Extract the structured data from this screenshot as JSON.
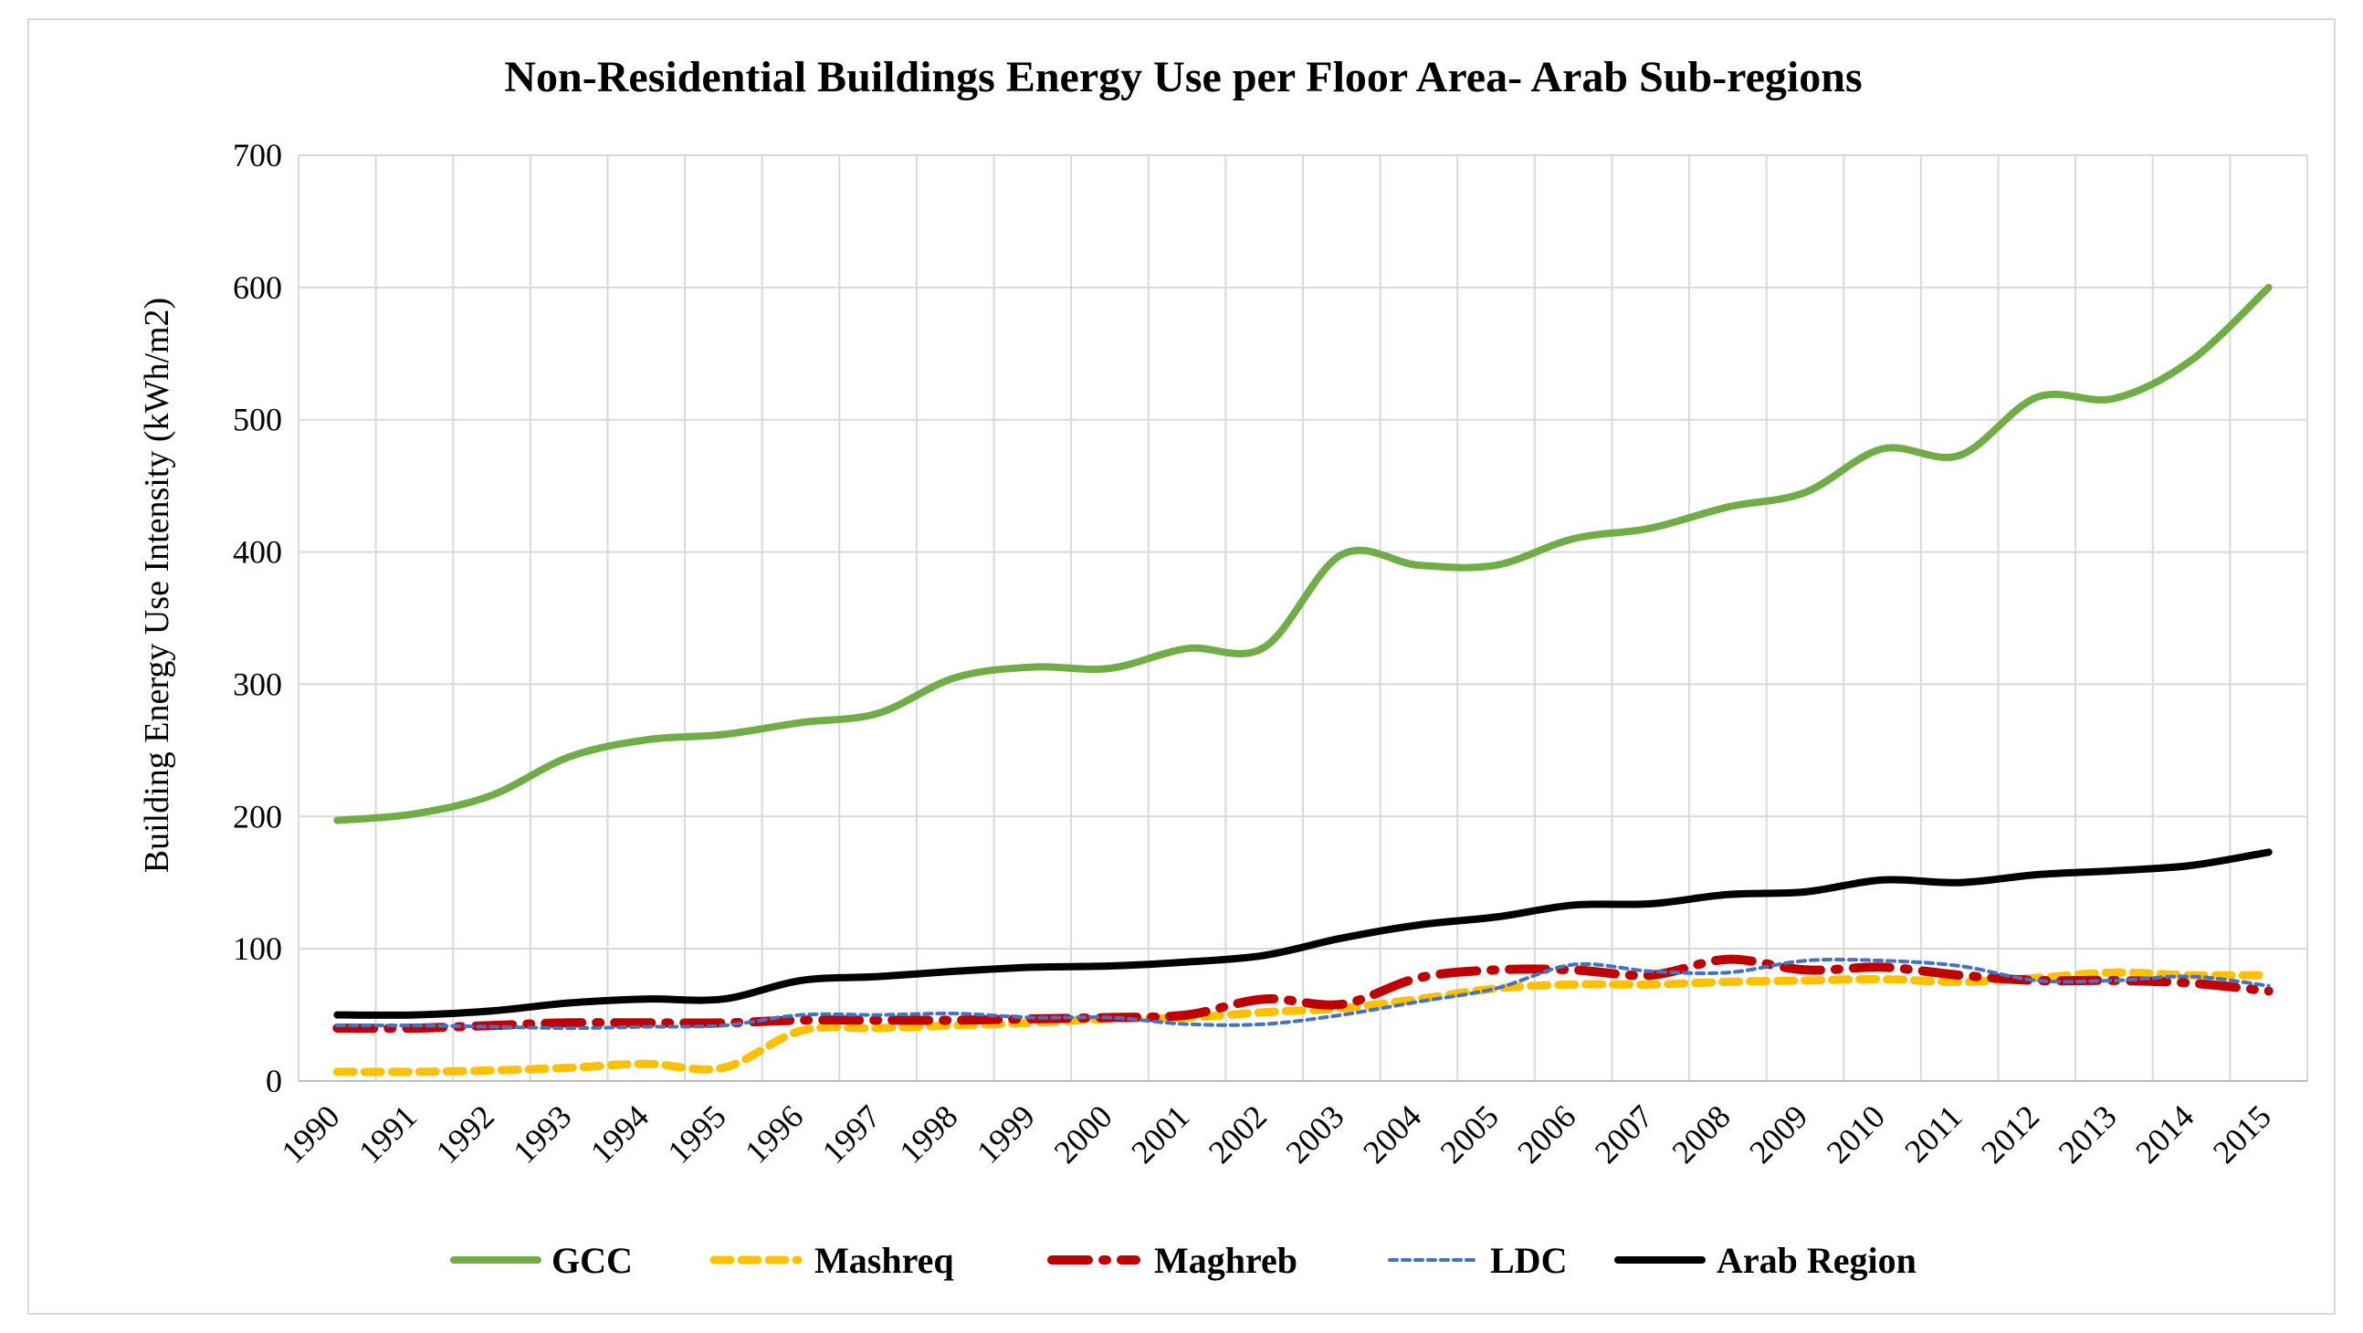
{
  "chart_data": {
    "type": "line",
    "title": "Non-Residential Buildings Energy Use per Floor Area- Arab Sub-regions",
    "xlabel": "",
    "ylabel": "Building Energy Use Intensity  (kWh/m2)",
    "ylim": [
      0,
      700
    ],
    "yticks": [
      0,
      100,
      200,
      300,
      400,
      500,
      600,
      700
    ],
    "grid": true,
    "legend_position": "bottom",
    "categories": [
      "1990",
      "1991",
      "1992",
      "1993",
      "1994",
      "1995",
      "1996",
      "1997",
      "1998",
      "1999",
      "2000",
      "2001",
      "2002",
      "2003",
      "2004",
      "2005",
      "2006",
      "2007",
      "2008",
      "2009",
      "2010",
      "2011",
      "2012",
      "2013",
      "2014",
      "2015"
    ],
    "series": [
      {
        "name": "GCC",
        "color": "#70ad47",
        "style": "solid",
        "values": [
          197,
          202,
          216,
          245,
          258,
          262,
          271,
          278,
          305,
          313,
          312,
          327,
          328,
          398,
          390,
          390,
          410,
          418,
          434,
          445,
          478,
          473,
          517,
          516,
          545,
          600
        ]
      },
      {
        "name": "Mashreq",
        "color": "#ffc000",
        "style": "dash",
        "values": [
          7,
          7,
          8,
          10,
          13,
          10,
          38,
          40,
          42,
          44,
          47,
          48,
          52,
          55,
          62,
          70,
          73,
          73,
          75,
          76,
          77,
          75,
          78,
          82,
          80,
          80
        ]
      },
      {
        "name": "Maghreb",
        "color": "#c00000",
        "style": "longdash",
        "values": [
          40,
          40,
          42,
          44,
          44,
          44,
          46,
          46,
          46,
          47,
          48,
          50,
          62,
          58,
          78,
          84,
          84,
          80,
          92,
          84,
          86,
          80,
          76,
          76,
          74,
          68
        ]
      },
      {
        "name": "LDC",
        "color": "#4472c4",
        "style": "dot",
        "values": [
          42,
          42,
          41,
          40,
          41,
          42,
          50,
          50,
          51,
          48,
          48,
          43,
          43,
          50,
          60,
          70,
          88,
          83,
          82,
          91,
          91,
          87,
          76,
          76,
          79,
          72
        ]
      },
      {
        "name": "Arab Region",
        "color": "#000000",
        "style": "solid",
        "values": [
          50,
          50,
          53,
          59,
          62,
          62,
          76,
          79,
          83,
          86,
          87,
          90,
          95,
          108,
          118,
          124,
          133,
          134,
          141,
          143,
          152,
          150,
          156,
          159,
          163,
          173
        ]
      }
    ]
  }
}
